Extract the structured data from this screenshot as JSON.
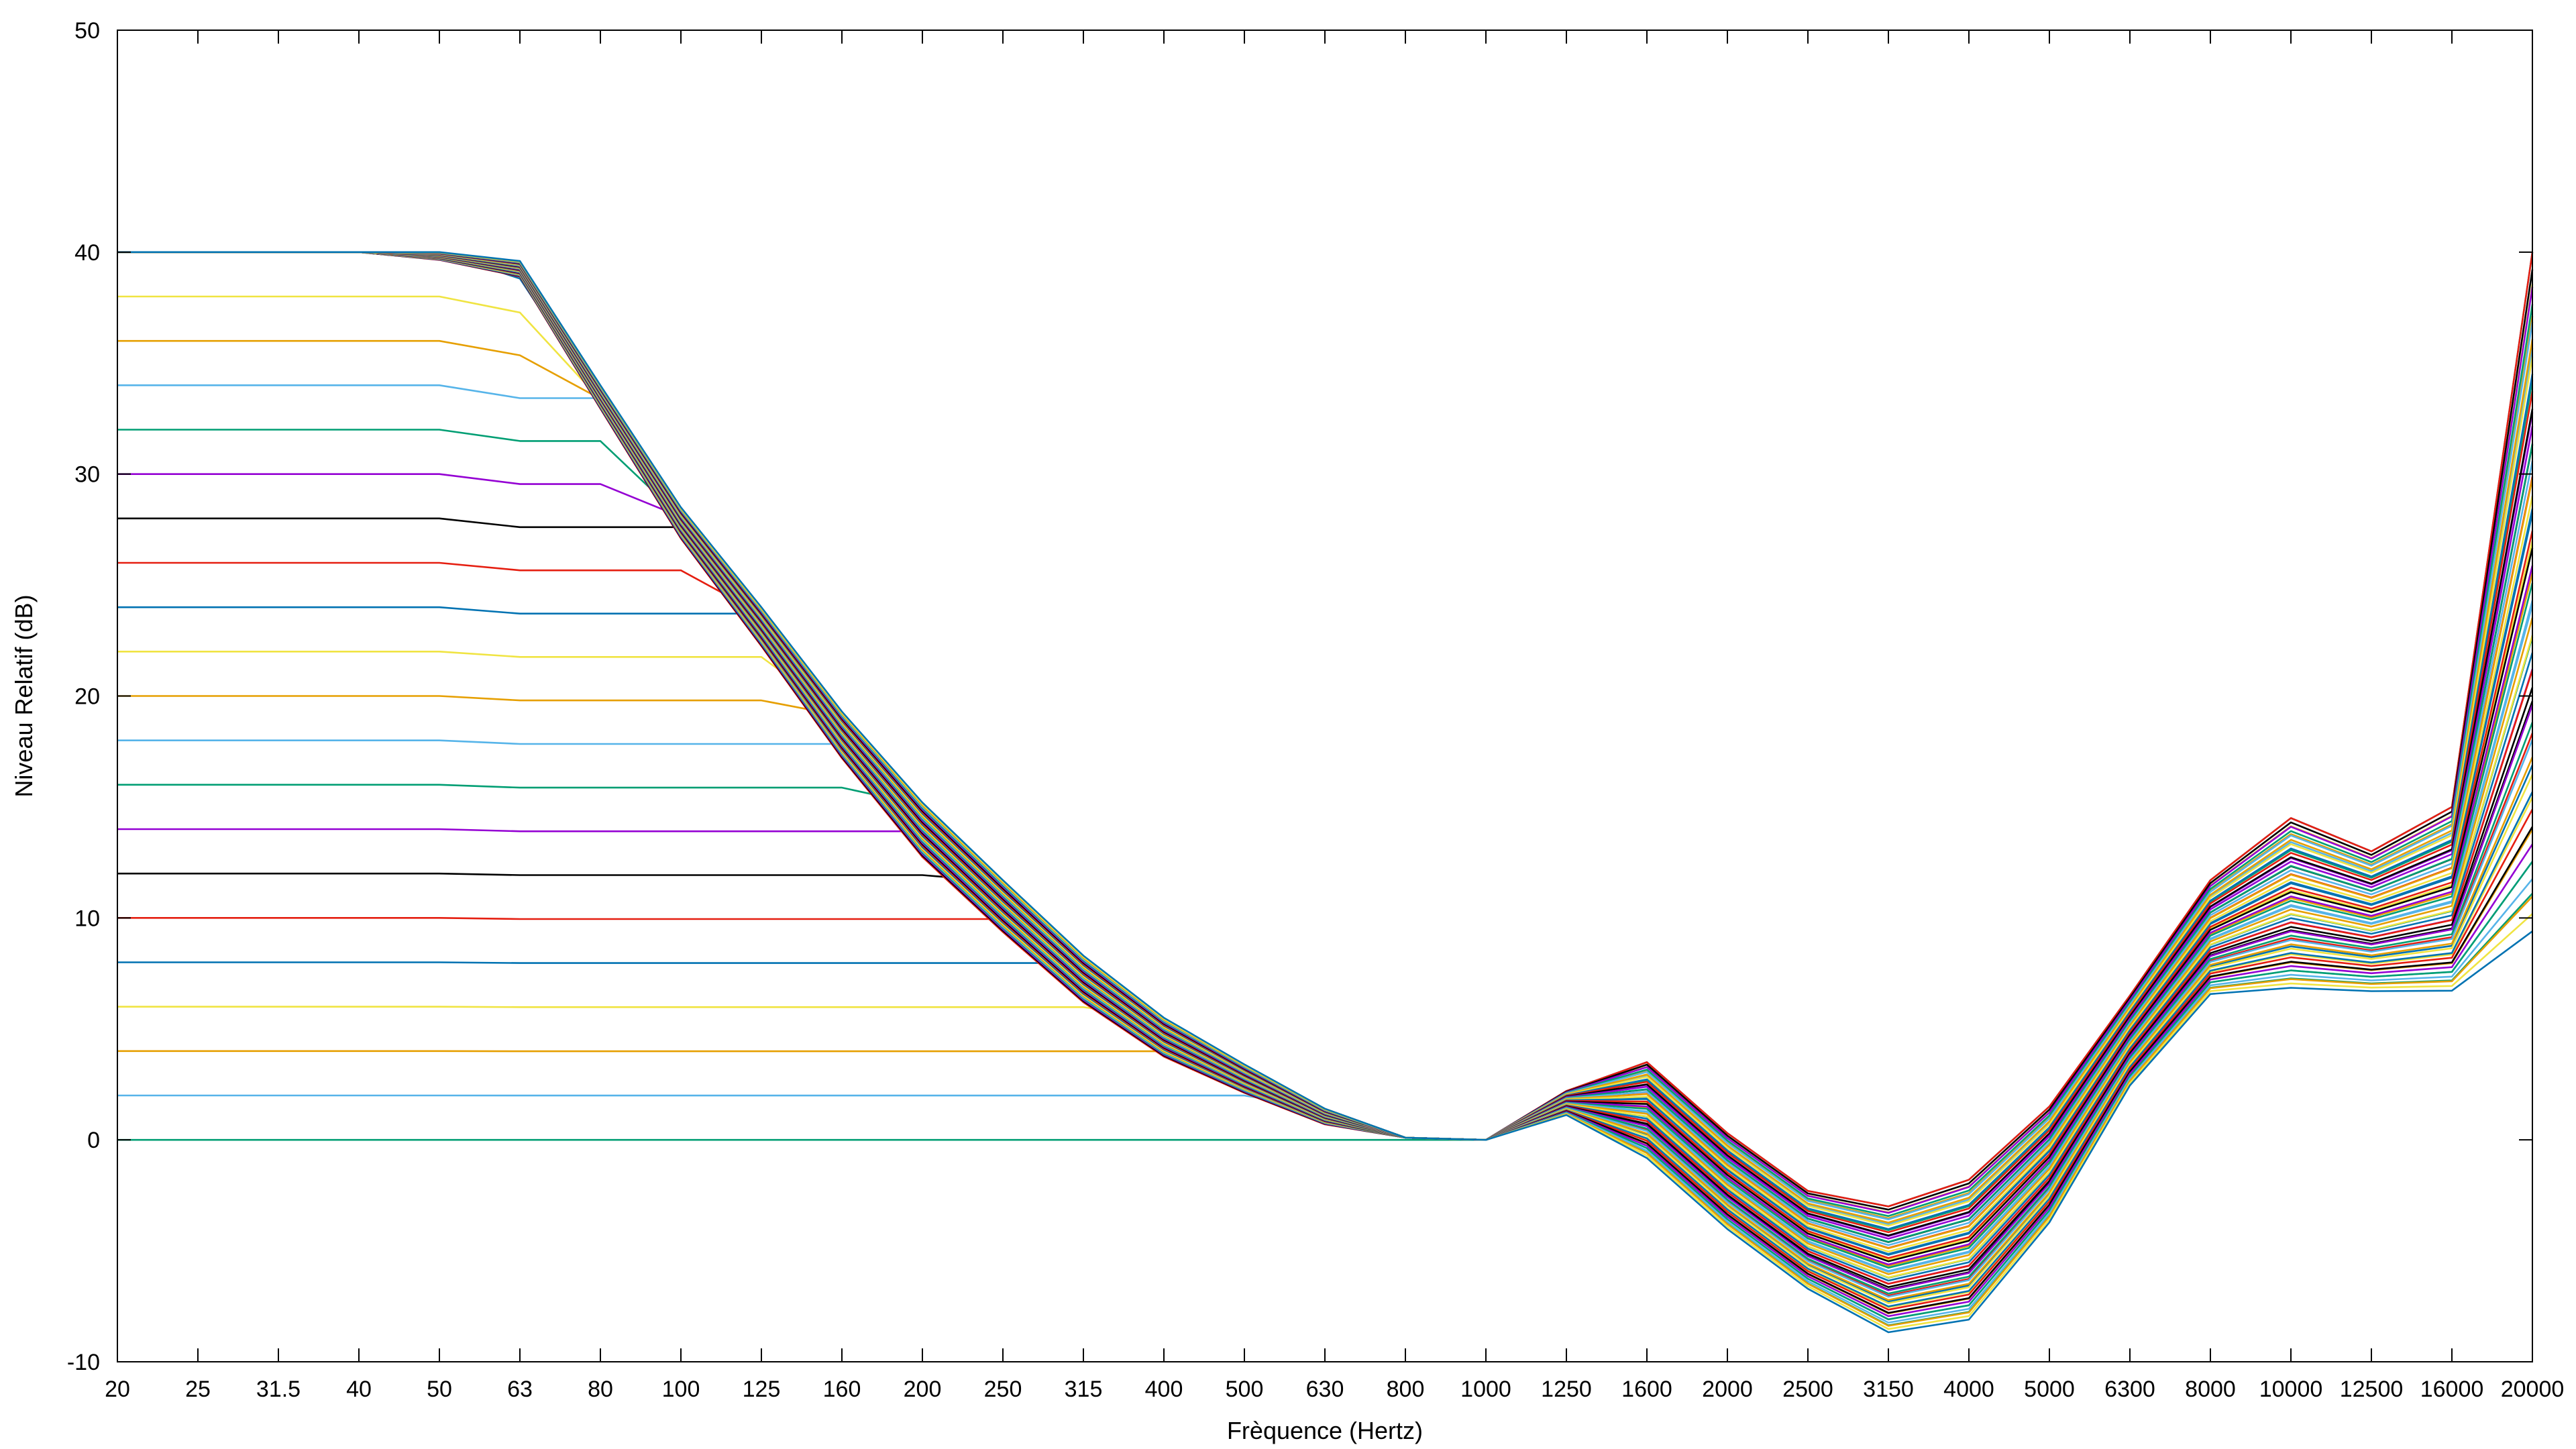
{
  "chart_data": {
    "type": "line",
    "title": "",
    "xlabel": "Frèquence (Hertz)",
    "ylabel": "Niveau Relatif (dB)",
    "x_scale": "categorical",
    "categories": [
      "20",
      "25",
      "31.5",
      "40",
      "50",
      "63",
      "80",
      "100",
      "125",
      "160",
      "200",
      "250",
      "315",
      "400",
      "500",
      "630",
      "800",
      "1000",
      "1250",
      "1600",
      "2000",
      "2500",
      "3150",
      "4000",
      "5000",
      "6300",
      "8000",
      "10000",
      "12500",
      "16000",
      "20000"
    ],
    "y_ticks": [
      "-10",
      "0",
      "10",
      "20",
      "30",
      "40",
      "50"
    ],
    "ylim": [
      -10,
      50
    ],
    "grid": false,
    "legend": "none",
    "palette": [
      "#009e73",
      "#56b4e9",
      "#e69f00",
      "#f0e442",
      "#0072b2",
      "#e51e10",
      "#000000",
      "#9400d3"
    ],
    "envelope": {
      "description_source": "family of 61 filter curves; level at 20 Hz ranges 0–40 dB",
      "low_shelf_start": [
        0,
        2,
        4,
        6,
        8,
        10,
        12,
        14,
        16,
        18,
        20,
        22,
        24,
        26,
        28,
        30,
        32,
        34,
        36,
        38,
        40
      ],
      "upper_curve": [
        40,
        40,
        40,
        40,
        40,
        39.6,
        34,
        28.5,
        24,
        19.3,
        15.2,
        11.7,
        8.3,
        5.5,
        3.4,
        1.4,
        0.1,
        0,
        2.2,
        3.5,
        0.3,
        -2.3,
        -3,
        -1.8,
        1.5,
        6.5,
        11.7,
        14.5,
        13,
        15,
        40
      ],
      "lower_curve": [
        0,
        0,
        0,
        0,
        0,
        0,
        0,
        0,
        0,
        0,
        0,
        0,
        0,
        0,
        -0.1,
        -0.2,
        -0.3,
        0,
        1,
        -1.3,
        -4.5,
        -7.2,
        -9.3,
        -8.8,
        -4.3,
        2,
        6,
        6,
        6,
        5.8,
        6
      ]
    },
    "series_count": 61
  }
}
